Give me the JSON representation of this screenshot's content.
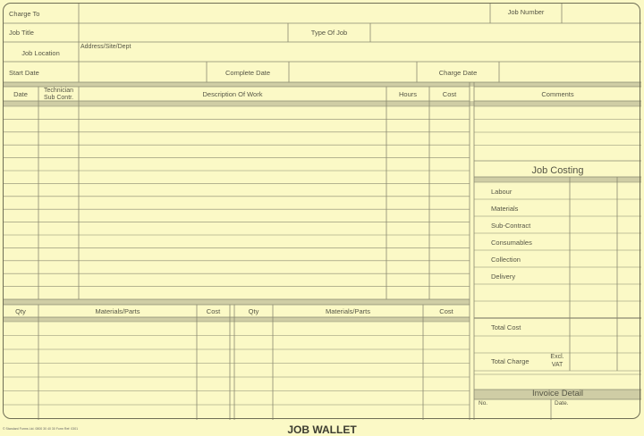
{
  "header": {
    "charge_to": "Charge To",
    "job_number": "Job Number",
    "job_title": "Job Title",
    "type_of_job": "Type Of Job",
    "job_location": "Job Location",
    "address": "Address/Site/Dept",
    "start_date": "Start Date",
    "complete_date": "Complete Date",
    "charge_date": "Charge Date"
  },
  "work_table": {
    "columns": [
      "Date",
      "Technician Sub Contr.",
      "Description Of Work",
      "Hours",
      "Cost"
    ],
    "tech_line1": "Technician",
    "tech_line2": "Sub Contr."
  },
  "comments": {
    "label": "Comments"
  },
  "job_costing": {
    "title": "Job Costing",
    "items": [
      "Labour",
      "Materials",
      "Sub-Contract",
      "Consumables",
      "Collection",
      "Delivery"
    ],
    "total_cost": "Total Cost",
    "total_charge": "Total Charge",
    "excl": "Excl.",
    "vat": "VAT"
  },
  "materials_table": {
    "columns": [
      "Qty",
      "Materials/Parts",
      "Cost",
      "Qty",
      "Materials/Parts",
      "Cost"
    ]
  },
  "invoice": {
    "title": "Invoice Detail",
    "no": "No.",
    "date": "Date."
  },
  "form_title": "JOB WALLET",
  "footer": "© Standard Forms Ltd. 0800 30 40 30 Form Ref: 0301",
  "colors": {
    "paper": "#fbf9c6",
    "line": "#8a8970",
    "band": "#cfcda5"
  }
}
